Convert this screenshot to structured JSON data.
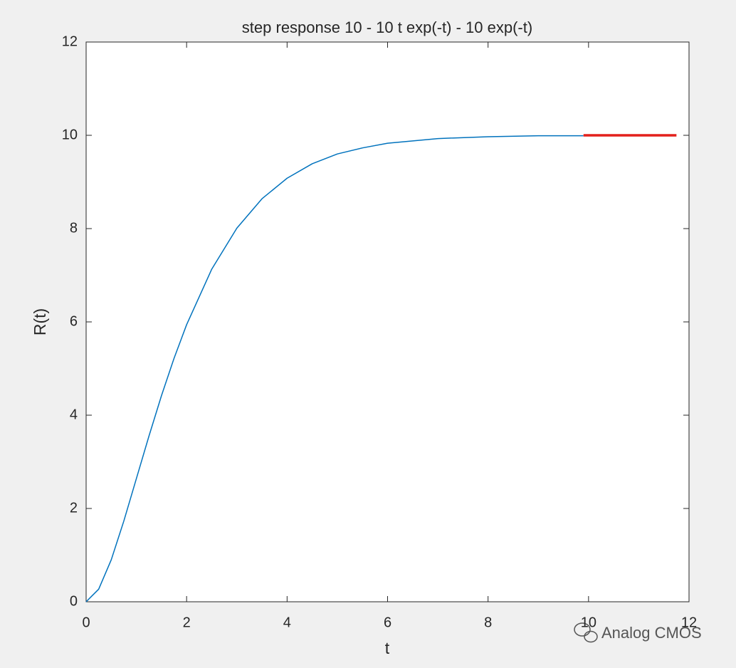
{
  "chart_data": {
    "type": "line",
    "title": "step response 10 - 10 t exp(-t) - 10 exp(-t)",
    "x_label": "t",
    "y_label": "R(t)",
    "series": [
      {
        "color": "#0072bd",
        "line_width": 1.5,
        "x": [
          0,
          0.25,
          0.5,
          0.75,
          1,
          1.25,
          1.5,
          1.75,
          2,
          2.5,
          3,
          3.5,
          4,
          4.5,
          5,
          5.5,
          6,
          7,
          8,
          9,
          9.9
        ],
        "values": [
          0,
          0.27,
          0.9,
          1.73,
          2.64,
          3.55,
          4.42,
          5.22,
          5.94,
          7.13,
          8.01,
          8.64,
          9.08,
          9.39,
          9.6,
          9.73,
          9.83,
          9.93,
          9.97,
          9.99,
          9.99
        ]
      },
      {
        "color": "#e3201b",
        "line_width": 3.5,
        "x": [
          9.9,
          11.75
        ],
        "values": [
          10,
          10
        ]
      }
    ],
    "xlim": [
      0,
      12
    ],
    "xticks": [
      0,
      2,
      4,
      6,
      8,
      10,
      12
    ],
    "ylim": [
      0,
      12
    ],
    "yticks": [
      0,
      2,
      4,
      6,
      8,
      10,
      12
    ],
    "grid": false,
    "watermark": "Analog CMOS"
  }
}
